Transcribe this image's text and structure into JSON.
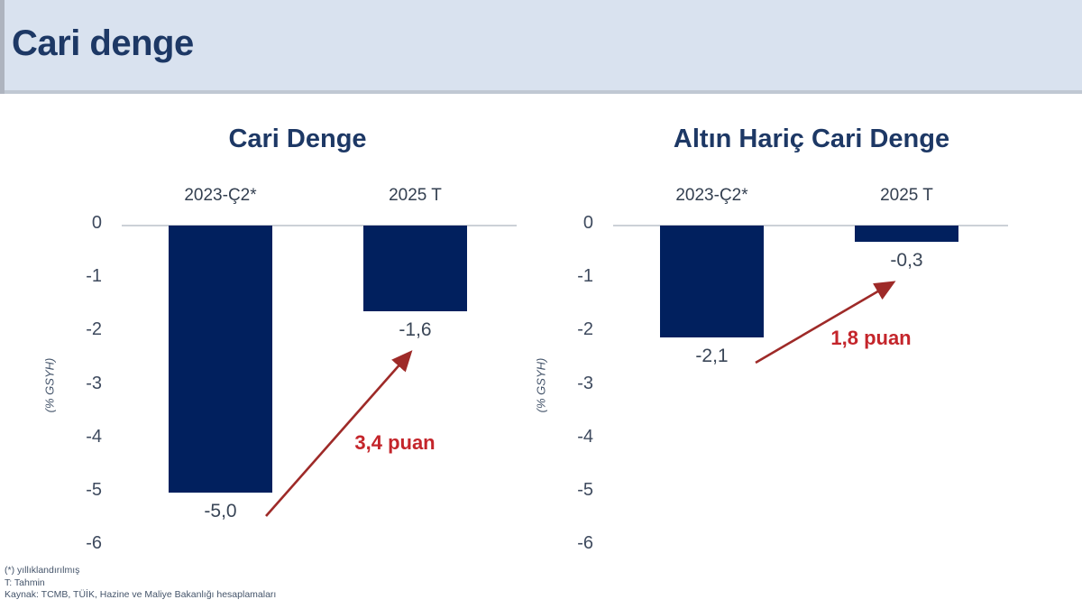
{
  "header": {
    "title": "Cari denge"
  },
  "chart_data": [
    {
      "type": "bar",
      "title": "Cari Denge",
      "categories": [
        "2023-Ç2*",
        "2025 T"
      ],
      "values": [
        -5.0,
        -1.6
      ],
      "value_labels": [
        "-5,0",
        "-1,6"
      ],
      "annotation": "3,4 puan",
      "ylabel": "(% GSYH)",
      "ylim": [
        -6,
        0
      ],
      "y_ticks": [
        "0",
        "-1",
        "-2",
        "-3",
        "-4",
        "-5",
        "-6"
      ],
      "grid": "off",
      "legend": "none"
    },
    {
      "type": "bar",
      "title": "Altın Hariç Cari Denge",
      "categories": [
        "2023-Ç2*",
        "2025 T"
      ],
      "values": [
        -2.1,
        -0.3
      ],
      "value_labels": [
        "-2,1",
        "-0,3"
      ],
      "annotation": "1,8 puan",
      "ylabel": "(% GSYH)",
      "ylim": [
        -6,
        0
      ],
      "y_ticks": [
        "0",
        "-1",
        "-2",
        "-3",
        "-4",
        "-5",
        "-6"
      ],
      "grid": "off",
      "legend": "none"
    }
  ],
  "footnotes": [
    "(*) yıllıklandırılmış",
    "T: Tahmin",
    "Kaynak: TCMB, TÜİK, Hazine ve Maliye Bakanlığı hesaplamaları"
  ],
  "colors": {
    "header_background": "#d9e2ef",
    "title_navy": "#1d3865",
    "bar_navy": "#01205e",
    "annotation_red": "#c4252b",
    "arrow_red": "#9e2a28",
    "axis_text": "#3e4a5e",
    "footnote_text": "#44546a"
  }
}
